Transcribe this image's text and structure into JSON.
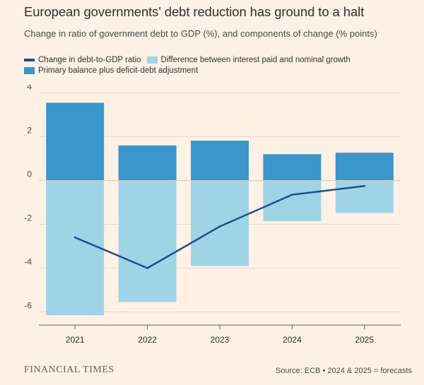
{
  "chart_data": {
    "type": "bar",
    "stacked": true,
    "title": "European governments' debt reduction has ground to a halt",
    "subtitle": "Change in ratio of government debt to GDP (%), and components of change (% points)",
    "categories": [
      "2021",
      "2022",
      "2023",
      "2024",
      "2025"
    ],
    "series": [
      {
        "name": "Primary balance plus deficit-debt adjustment",
        "kind": "bar",
        "color": "#3a96cb",
        "values": [
          3.55,
          1.6,
          1.82,
          1.2,
          1.27
        ]
      },
      {
        "name": "Difference between interest paid and nominal growth",
        "kind": "bar",
        "color": "#9fd4e6",
        "values": [
          -6.15,
          -5.55,
          -3.9,
          -1.85,
          -1.48
        ]
      },
      {
        "name": "Change in debt-to-GDP ratio",
        "kind": "line",
        "color": "#1f4e8c",
        "values": [
          -2.6,
          -4.0,
          -2.1,
          -0.65,
          -0.25
        ]
      }
    ],
    "yticks": [
      "4",
      "2",
      "0",
      "-2",
      "-4",
      "-6"
    ],
    "ylim": [
      -6.6,
      4
    ],
    "grid": true,
    "legend_position": "top-left"
  },
  "legend": {
    "row1": [
      {
        "label": "Change in debt-to-GDP ratio",
        "kind": "line",
        "color": "#1f4e8c"
      },
      {
        "label": "Difference between interest paid and nominal growth",
        "kind": "box",
        "color": "#9fd4e6"
      }
    ],
    "row2": [
      {
        "label": "Primary balance plus deficit-debt adjustment",
        "kind": "box",
        "color": "#3a96cb"
      }
    ]
  },
  "footer": {
    "brand": "FINANCIAL TIMES",
    "source": "Source: ECB • 2024 & 2025 = forecasts"
  }
}
